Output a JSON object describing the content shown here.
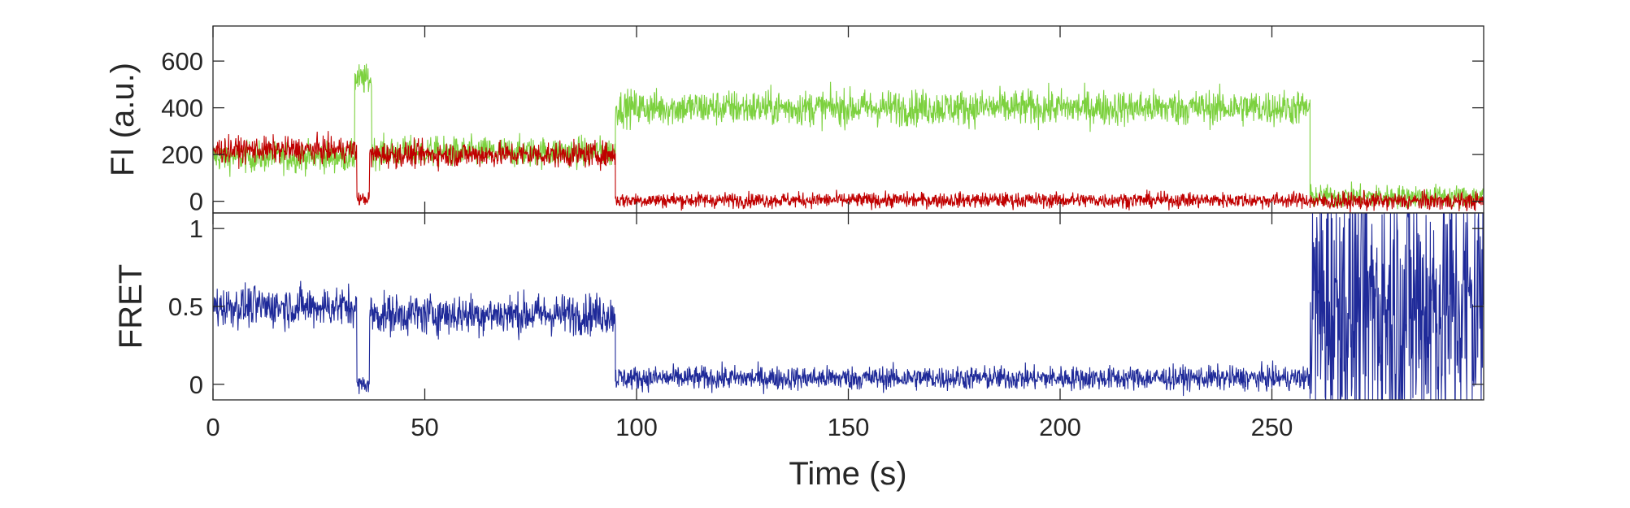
{
  "chart_data": [
    {
      "type": "line",
      "title": "",
      "ylabel": "FI (a.u.)",
      "xlabel": "",
      "xlim": [
        0,
        300
      ],
      "ylim": [
        -50,
        750
      ],
      "yticks": [
        "0",
        "200",
        "400",
        "600"
      ],
      "yticks_values": [
        0,
        200,
        400,
        600
      ],
      "grid": false,
      "series": [
        {
          "color": "#7cd13e",
          "segments": [
            {
              "x0": 0,
              "x1": 33.5,
              "mean": 190,
              "noise": 60
            },
            {
              "x0": 33.5,
              "x1": 37.5,
              "mean": 520,
              "noise": 60
            },
            {
              "x0": 37.5,
              "x1": 95,
              "mean": 210,
              "noise": 60
            },
            {
              "x0": 95,
              "x1": 259,
              "mean": 400,
              "noise": 70
            },
            {
              "x0": 259,
              "x1": 300,
              "mean": 20,
              "noise": 45
            }
          ]
        },
        {
          "color": "#c00000",
          "segments": [
            {
              "x0": 0,
              "x1": 34,
              "mean": 220,
              "noise": 50
            },
            {
              "x0": 34,
              "x1": 37,
              "mean": 10,
              "noise": 25
            },
            {
              "x0": 37,
              "x1": 95,
              "mean": 200,
              "noise": 50
            },
            {
              "x0": 95,
              "x1": 259,
              "mean": 5,
              "noise": 30
            },
            {
              "x0": 259,
              "x1": 300,
              "mean": 0,
              "noise": 35
            }
          ]
        }
      ]
    },
    {
      "type": "line",
      "title": "",
      "ylabel": "FRET",
      "xlabel": "Time (s)",
      "xlim": [
        0,
        300
      ],
      "ylim": [
        -0.1,
        1.1
      ],
      "xticks": [
        "0",
        "50",
        "100",
        "150",
        "200",
        "250"
      ],
      "xticks_values": [
        0,
        50,
        100,
        150,
        200,
        250
      ],
      "yticks": [
        "0",
        "0.5",
        "1"
      ],
      "yticks_values": [
        0,
        0.5,
        1
      ],
      "grid": false,
      "series": [
        {
          "color": "#1f2a99",
          "segments": [
            {
              "x0": 0,
              "x1": 34,
              "mean": 0.5,
              "noise": 0.12
            },
            {
              "x0": 34,
              "x1": 37,
              "mean": 0.0,
              "noise": 0.05
            },
            {
              "x0": 37,
              "x1": 95,
              "mean": 0.45,
              "noise": 0.12
            },
            {
              "x0": 95,
              "x1": 259,
              "mean": 0.04,
              "noise": 0.07
            },
            {
              "x0": 259,
              "x1": 300,
              "mean": 0.5,
              "noise": 0.9
            }
          ]
        }
      ]
    }
  ]
}
